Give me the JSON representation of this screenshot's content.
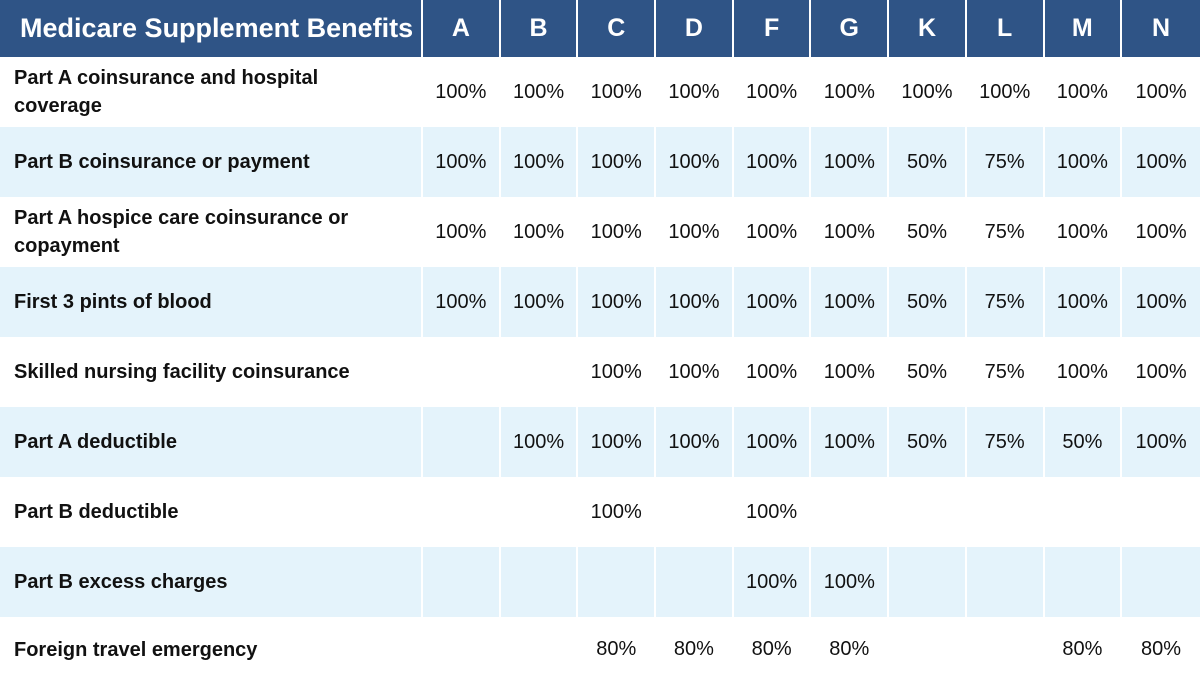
{
  "header": {
    "title": "Medicare Supplement Benefits",
    "plans": [
      "A",
      "B",
      "C",
      "D",
      "F",
      "G",
      "K",
      "L",
      "M",
      "N"
    ]
  },
  "colors": {
    "header_bg": "#2f5486",
    "shaded_row": "#e4f3fb"
  },
  "rows": [
    {
      "label": "Part A coinsurance and hospital coverage",
      "values": [
        "100%",
        "100%",
        "100%",
        "100%",
        "100%",
        "100%",
        "100%",
        "100%",
        "100%",
        "100%"
      ]
    },
    {
      "label": "Part B coinsurance or payment",
      "values": [
        "100%",
        "100%",
        "100%",
        "100%",
        "100%",
        "100%",
        "50%",
        "75%",
        "100%",
        "100%"
      ]
    },
    {
      "label": "Part A hospice care coinsurance or copayment",
      "values": [
        "100%",
        "100%",
        "100%",
        "100%",
        "100%",
        "100%",
        "50%",
        "75%",
        "100%",
        "100%"
      ]
    },
    {
      "label": "First 3 pints of blood",
      "values": [
        "100%",
        "100%",
        "100%",
        "100%",
        "100%",
        "100%",
        "50%",
        "75%",
        "100%",
        "100%"
      ]
    },
    {
      "label": "Skilled nursing facility coinsurance",
      "values": [
        "",
        "",
        "100%",
        "100%",
        "100%",
        "100%",
        "50%",
        "75%",
        "100%",
        "100%"
      ]
    },
    {
      "label": "Part A deductible",
      "values": [
        "",
        "100%",
        "100%",
        "100%",
        "100%",
        "100%",
        "50%",
        "75%",
        "50%",
        "100%"
      ]
    },
    {
      "label": "Part B deductible",
      "values": [
        "",
        "",
        "100%",
        "",
        "100%",
        "",
        "",
        "",
        "",
        ""
      ]
    },
    {
      "label": "Part B excess charges",
      "values": [
        "",
        "",
        "",
        "",
        "100%",
        "100%",
        "",
        "",
        "",
        ""
      ]
    },
    {
      "label": "Foreign travel emergency",
      "values": [
        "",
        "",
        "80%",
        "80%",
        "80%",
        "80%",
        "",
        "",
        "80%",
        "80%"
      ]
    }
  ]
}
